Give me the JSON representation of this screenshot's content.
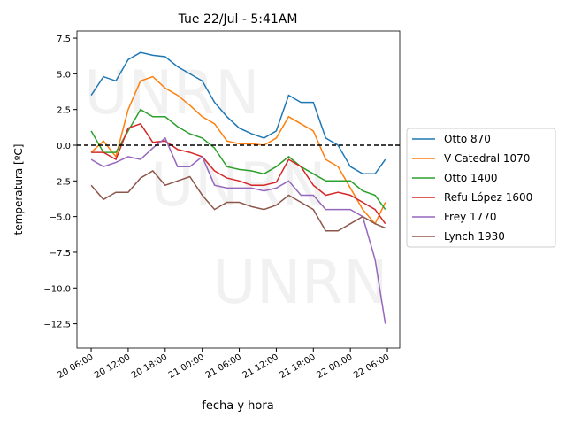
{
  "chart_data": {
    "type": "line",
    "title": "Tue 22/Jul - 5:41AM",
    "x_label": "fecha y hora",
    "y_label": "temperatura [ºC]",
    "watermark": "UNRN",
    "hline": 0,
    "x": [
      "20 06:00",
      "20 08:00",
      "20 10:00",
      "20 12:00",
      "20 14:00",
      "20 16:00",
      "20 18:00",
      "20 20:00",
      "20 22:00",
      "21 00:00",
      "21 02:00",
      "21 04:00",
      "21 06:00",
      "21 08:00",
      "21 10:00",
      "21 12:00",
      "21 14:00",
      "21 16:00",
      "21 18:00",
      "21 20:00",
      "21 22:00",
      "22 00:00",
      "22 02:00",
      "22 04:00",
      "22 05:40"
    ],
    "xlim": [
      "20 03:42",
      "22 08:00"
    ],
    "xticks": [
      "20 06:00",
      "20 12:00",
      "20 18:00",
      "21 00:00",
      "21 06:00",
      "21 12:00",
      "21 18:00",
      "22 00:00",
      "22 06:00"
    ],
    "ylim": [
      -14.2,
      8.0
    ],
    "yticks": [
      {
        "value": -12.5,
        "label": "−12.5"
      },
      {
        "value": -10,
        "label": "−10.0"
      },
      {
        "value": -7.5,
        "label": "−7.5"
      },
      {
        "value": -5,
        "label": "−5.0"
      },
      {
        "value": -2.5,
        "label": "−2.5"
      },
      {
        "value": 0,
        "label": "0.0"
      },
      {
        "value": 2.5,
        "label": "2.5"
      },
      {
        "value": 5,
        "label": "5.0"
      },
      {
        "value": 7.5,
        "label": "7.5"
      }
    ],
    "legend": "right",
    "series": [
      {
        "name": "Otto 870",
        "color": "#1f77b4",
        "values": [
          3.5,
          4.8,
          4.5,
          6.0,
          6.5,
          6.3,
          6.2,
          5.5,
          5.0,
          4.5,
          3.0,
          2.0,
          1.2,
          0.8,
          0.5,
          1.0,
          3.5,
          3.0,
          3.0,
          0.5,
          0,
          -1.5,
          -2,
          -2,
          -1.0
        ]
      },
      {
        "name": "V Catedral 1070",
        "color": "#ff7f0e",
        "values": [
          -0.5,
          0.3,
          -0.8,
          2.5,
          4.5,
          4.8,
          4.0,
          3.5,
          2.8,
          2.0,
          1.5,
          0.3,
          0.1,
          0.1,
          0,
          0.5,
          2.0,
          1.5,
          1.0,
          -1,
          -1.5,
          -3,
          -4.5,
          -5.5,
          -4
        ]
      },
      {
        "name": "Otto 1400",
        "color": "#2ca02c",
        "values": [
          1.0,
          -0.5,
          -0.5,
          1.0,
          2.5,
          2.0,
          2.0,
          1.3,
          0.8,
          0.5,
          -0.2,
          -1.5,
          -1.7,
          -1.8,
          -2.0,
          -1.5,
          -0.8,
          -1.5,
          -2.0,
          -2.5,
          -2.5,
          -2.5,
          -3.2,
          -3.5,
          -4.5
        ]
      },
      {
        "name": "Refu López 1600",
        "color": "#d62728",
        "values": [
          -0.5,
          -0.5,
          -1.0,
          1.2,
          1.5,
          0.2,
          0.3,
          -0.3,
          -0.5,
          -0.8,
          -1.8,
          -2.3,
          -2.5,
          -2.8,
          -2.8,
          -2.6,
          -1.0,
          -1.5,
          -2.8,
          -3.5,
          -3.3,
          -3.5,
          -4.0,
          -4.5,
          -5.5
        ]
      },
      {
        "name": "Frey 1770",
        "color": "#9467bd",
        "values": [
          -1.0,
          -1.5,
          -1.2,
          -0.8,
          -1.0,
          -0.2,
          0.5,
          -1.5,
          -1.5,
          -0.8,
          -2.8,
          -3.0,
          -3.0,
          -3.0,
          -3.2,
          -3.0,
          -2.5,
          -3.5,
          -3.5,
          -4.5,
          -4.5,
          -4.5,
          -5.0,
          -8,
          -12.5
        ]
      },
      {
        "name": "Lynch 1930",
        "color": "#8c564b",
        "values": [
          -2.8,
          -3.8,
          -3.3,
          -3.3,
          -2.3,
          -1.8,
          -2.8,
          -2.5,
          -2.2,
          -3.5,
          -4.5,
          -4.0,
          -4.0,
          -4.3,
          -4.5,
          -4.2,
          -3.5,
          -4.0,
          -4.5,
          -6.0,
          -6.0,
          -5.5,
          -5.0,
          -5.5,
          -5.8
        ]
      }
    ]
  }
}
